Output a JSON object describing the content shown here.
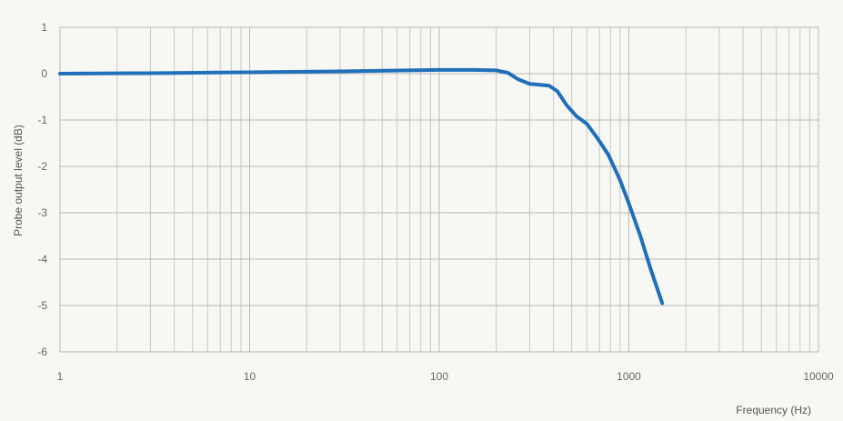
{
  "chart_data": {
    "type": "line",
    "x_scale": "log",
    "xlim": [
      1,
      10000
    ],
    "ylim": [
      -6,
      1
    ],
    "xlabel": "Frequency (Hz)",
    "ylabel": "Probe output level (dB)",
    "x_ticks": [
      1,
      10,
      100,
      1000,
      10000
    ],
    "x_tick_labels": [
      "1",
      "10",
      "100",
      "1000",
      "10000"
    ],
    "y_ticks": [
      1,
      0,
      -1,
      -2,
      -3,
      -4,
      -5,
      -6
    ],
    "y_tick_labels": [
      "1",
      "0",
      "-1",
      "-2",
      "-3",
      "-4",
      "-5",
      "-6"
    ],
    "grid": true,
    "series": [
      {
        "color": "#1f6fba",
        "points": [
          [
            1,
            0.0
          ],
          [
            3,
            0.01
          ],
          [
            10,
            0.03
          ],
          [
            30,
            0.05
          ],
          [
            100,
            0.08
          ],
          [
            150,
            0.08
          ],
          [
            200,
            0.07
          ],
          [
            230,
            0.02
          ],
          [
            260,
            -0.12
          ],
          [
            300,
            -0.22
          ],
          [
            340,
            -0.24
          ],
          [
            380,
            -0.26
          ],
          [
            420,
            -0.38
          ],
          [
            470,
            -0.68
          ],
          [
            530,
            -0.92
          ],
          [
            600,
            -1.08
          ],
          [
            680,
            -1.38
          ],
          [
            780,
            -1.75
          ],
          [
            900,
            -2.3
          ],
          [
            1000,
            -2.8
          ],
          [
            1150,
            -3.5
          ],
          [
            1300,
            -4.2
          ],
          [
            1500,
            -4.95
          ]
        ]
      }
    ]
  }
}
